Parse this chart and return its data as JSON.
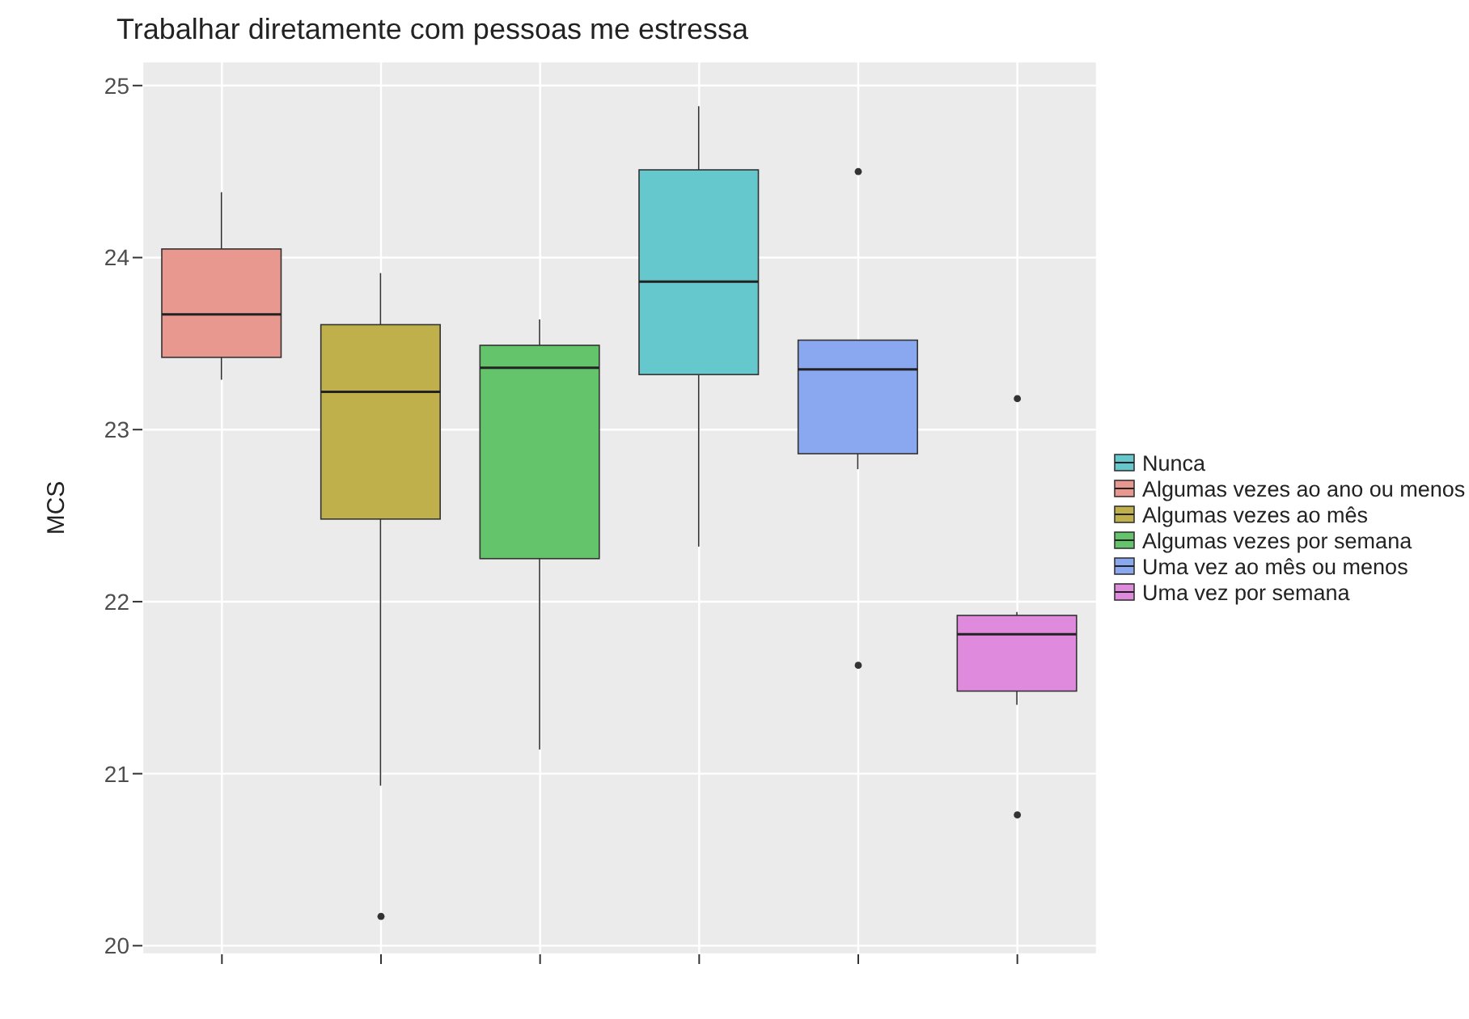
{
  "chart_data": {
    "type": "box",
    "title": "Trabalhar diretamente com pessoas me estressa",
    "ylabel": "MCS",
    "categories": [
      null,
      null,
      null,
      null,
      null,
      null
    ],
    "ylim": [
      19.95,
      25.14
    ],
    "yticks": [
      20,
      21,
      22,
      23,
      24,
      25
    ],
    "grid": true,
    "legend": "right",
    "series": [
      {
        "name": "Nunca",
        "color": "#65c8cc",
        "boxes": [
          null,
          null,
          null,
          {
            "low": 22.32,
            "q1": 23.32,
            "median": 23.86,
            "q3": 24.51,
            "high": 24.88
          },
          null,
          null
        ]
      },
      {
        "name": "Algumas vezes ao ano ou menos",
        "color": "#e99890",
        "boxes": [
          {
            "low": 23.29,
            "q1": 23.42,
            "median": 23.67,
            "q3": 24.05,
            "high": 24.38
          },
          null,
          null,
          null,
          null,
          null
        ]
      },
      {
        "name": "Algumas vezes ao mês",
        "color": "#c0b04c",
        "boxes": [
          null,
          {
            "low": 20.93,
            "q1": 22.48,
            "median": 23.22,
            "q3": 23.61,
            "high": 23.91,
            "outliers": [
              20.17
            ]
          },
          null,
          null,
          null,
          null
        ]
      },
      {
        "name": "Algumas vezes por semana",
        "color": "#64c46c",
        "boxes": [
          null,
          null,
          {
            "low": 21.14,
            "q1": 22.25,
            "median": 23.36,
            "q3": 23.49,
            "high": 23.64
          },
          null,
          null,
          null
        ]
      },
      {
        "name": "Uma vez ao mês ou menos",
        "color": "#8aa8f0",
        "boxes": [
          null,
          null,
          null,
          null,
          {
            "low": 22.77,
            "q1": 22.86,
            "median": 23.35,
            "q3": 23.52,
            "high": 23.52,
            "outliers": [
              24.5,
              21.63
            ]
          },
          null
        ]
      },
      {
        "name": "Uma vez por semana",
        "color": "#e08ade",
        "boxes": [
          null,
          null,
          null,
          null,
          null,
          {
            "low": 21.4,
            "q1": 21.48,
            "median": 21.81,
            "q3": 21.92,
            "high": 21.94,
            "outliers": [
              23.18,
              20.76
            ]
          }
        ]
      }
    ]
  }
}
